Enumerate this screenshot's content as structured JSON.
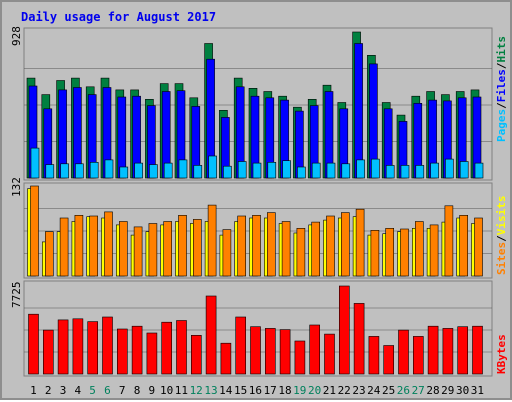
{
  "title": "Daily usage for August 2017",
  "colors": {
    "pages": "#00c0ff",
    "files": "#0000ff",
    "hits": "#008040",
    "sites": "#ff8000",
    "visits": "#ffff00",
    "kbytes": "#ff0000",
    "weekday_label": "#000000",
    "weekend_label": "#00805c",
    "panel_bg": "#c0c0c0",
    "grid": "#555555"
  },
  "side_labels": {
    "top": [
      "Pages",
      "/",
      "Files",
      "/",
      "Hits"
    ],
    "mid": [
      "Sites",
      "/",
      "Visits"
    ],
    "bottom": [
      "KBytes"
    ]
  },
  "chart_data": [
    {
      "type": "bar",
      "ylabel_max": "928",
      "ylim": [
        0,
        928
      ],
      "categories": [
        "1",
        "2",
        "3",
        "4",
        "5",
        "6",
        "7",
        "8",
        "9",
        "10",
        "11",
        "12",
        "13",
        "14",
        "15",
        "16",
        "17",
        "18",
        "19",
        "20",
        "21",
        "22",
        "23",
        "24",
        "25",
        "26",
        "27",
        "28",
        "29",
        "30",
        "31"
      ],
      "weekend_days": [
        "5",
        "6",
        "12",
        "13",
        "19",
        "20",
        "26",
        "27"
      ],
      "series": [
        {
          "name": "Hits",
          "values": [
            635,
            530,
            620,
            635,
            580,
            635,
            560,
            560,
            500,
            600,
            600,
            510,
            855,
            430,
            635,
            570,
            550,
            520,
            450,
            500,
            590,
            480,
            928,
            780,
            480,
            400,
            520,
            550,
            530,
            550,
            560
          ]
        },
        {
          "name": "Files",
          "values": [
            585,
            440,
            560,
            575,
            530,
            575,
            515,
            520,
            460,
            550,
            555,
            455,
            755,
            385,
            580,
            520,
            510,
            495,
            425,
            460,
            550,
            440,
            855,
            725,
            440,
            360,
            475,
            495,
            490,
            510,
            515
          ]
        },
        {
          "name": "Pages",
          "values": [
            190,
            85,
            90,
            90,
            100,
            115,
            70,
            95,
            85,
            95,
            115,
            80,
            140,
            75,
            105,
            95,
            100,
            110,
            70,
            95,
            95,
            90,
            115,
            120,
            80,
            80,
            80,
            95,
            120,
            105,
            95
          ]
        }
      ]
    },
    {
      "type": "bar",
      "ylabel_max": "132",
      "ylim": [
        0,
        132
      ],
      "categories": [
        "1",
        "2",
        "3",
        "4",
        "5",
        "6",
        "7",
        "8",
        "9",
        "10",
        "11",
        "12",
        "13",
        "14",
        "15",
        "16",
        "17",
        "18",
        "19",
        "20",
        "21",
        "22",
        "23",
        "24",
        "25",
        "26",
        "27",
        "28",
        "29",
        "30",
        "31"
      ],
      "series": [
        {
          "name": "Sites",
          "values": [
            132,
            65,
            85,
            89,
            88,
            94,
            80,
            72,
            77,
            80,
            89,
            83,
            104,
            68,
            88,
            89,
            93,
            80,
            70,
            79,
            88,
            93,
            98,
            67,
            70,
            69,
            80,
            75,
            103,
            89,
            85
          ]
        },
        {
          "name": "Visits",
          "values": [
            128,
            50,
            65,
            80,
            87,
            85,
            75,
            60,
            65,
            75,
            80,
            77,
            80,
            60,
            80,
            85,
            85,
            77,
            63,
            75,
            82,
            85,
            87,
            60,
            62,
            65,
            70,
            70,
            79,
            85,
            77
          ]
        }
      ]
    },
    {
      "type": "bar",
      "ylabel_max": "7725",
      "ylim": [
        0,
        7725
      ],
      "categories": [
        "1",
        "2",
        "3",
        "4",
        "5",
        "6",
        "7",
        "8",
        "9",
        "10",
        "11",
        "12",
        "13",
        "14",
        "15",
        "16",
        "17",
        "18",
        "19",
        "20",
        "21",
        "22",
        "23",
        "24",
        "25",
        "26",
        "27",
        "28",
        "29",
        "30",
        "31"
      ],
      "series": [
        {
          "name": "KBytes",
          "values": [
            5250,
            3850,
            4750,
            4850,
            4600,
            5000,
            3950,
            4200,
            3600,
            4550,
            4700,
            3400,
            6850,
            2700,
            5000,
            4150,
            4000,
            3900,
            2900,
            4300,
            3500,
            7725,
            6200,
            3300,
            2500,
            3850,
            3300,
            4200,
            4000,
            4150,
            4200
          ]
        }
      ]
    }
  ]
}
